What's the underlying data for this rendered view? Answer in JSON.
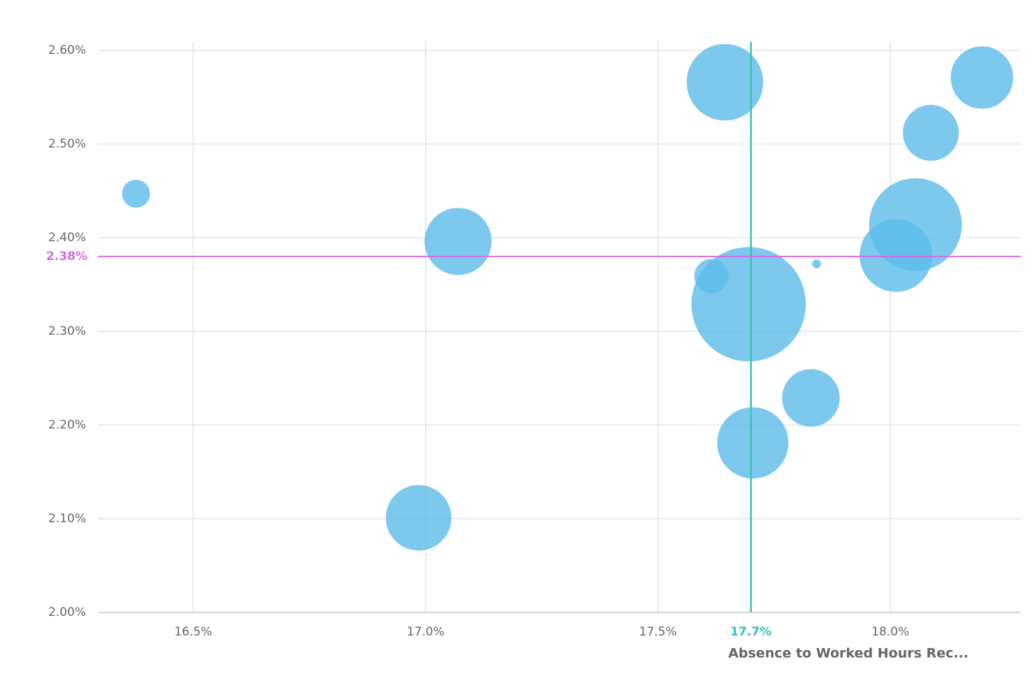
{
  "chart_data": {
    "type": "bubble",
    "x_label": "Absence to Worked Hours Rec...",
    "x": [
      16.377,
      17.07,
      16.985,
      17.644,
      18.197,
      18.087,
      18.054,
      18.012,
      17.615,
      17.695,
      17.841,
      17.829,
      17.704
    ],
    "values": [
      2.447,
      2.396,
      2.101,
      2.566,
      2.571,
      2.512,
      2.414,
      2.381,
      2.359,
      2.329,
      2.372,
      2.229,
      2.181
    ],
    "sizes": [
      4,
      23,
      22,
      30,
      20,
      16,
      44,
      27,
      6,
      67,
      0.4,
      17,
      26
    ],
    "color": "#5bbbe8",
    "xlim": [
      16.295,
      18.281
    ],
    "ylim": [
      2.0,
      2.609
    ],
    "xticks": [
      {
        "value": 16.5,
        "label": "16.5%"
      },
      {
        "value": 17.0,
        "label": "17.0%"
      },
      {
        "value": 17.5,
        "label": "17.5%"
      },
      {
        "value": 18.0,
        "label": "18.0%"
      }
    ],
    "yticks": [
      {
        "value": 2.0,
        "label": "2.00%"
      },
      {
        "value": 2.1,
        "label": "2.10%"
      },
      {
        "value": 2.2,
        "label": "2.20%"
      },
      {
        "value": 2.3,
        "label": "2.30%"
      },
      {
        "value": 2.4,
        "label": "2.40%"
      },
      {
        "value": 2.5,
        "label": "2.50%"
      },
      {
        "value": 2.6,
        "label": "2.60%"
      }
    ],
    "grid": true,
    "reference_lines": [
      {
        "axis": "x",
        "value": 17.7,
        "label": "17.7%",
        "color": "#2ec4b6"
      },
      {
        "axis": "y",
        "value": 2.38,
        "label": "2.38%",
        "color": "#d56be0"
      }
    ]
  }
}
